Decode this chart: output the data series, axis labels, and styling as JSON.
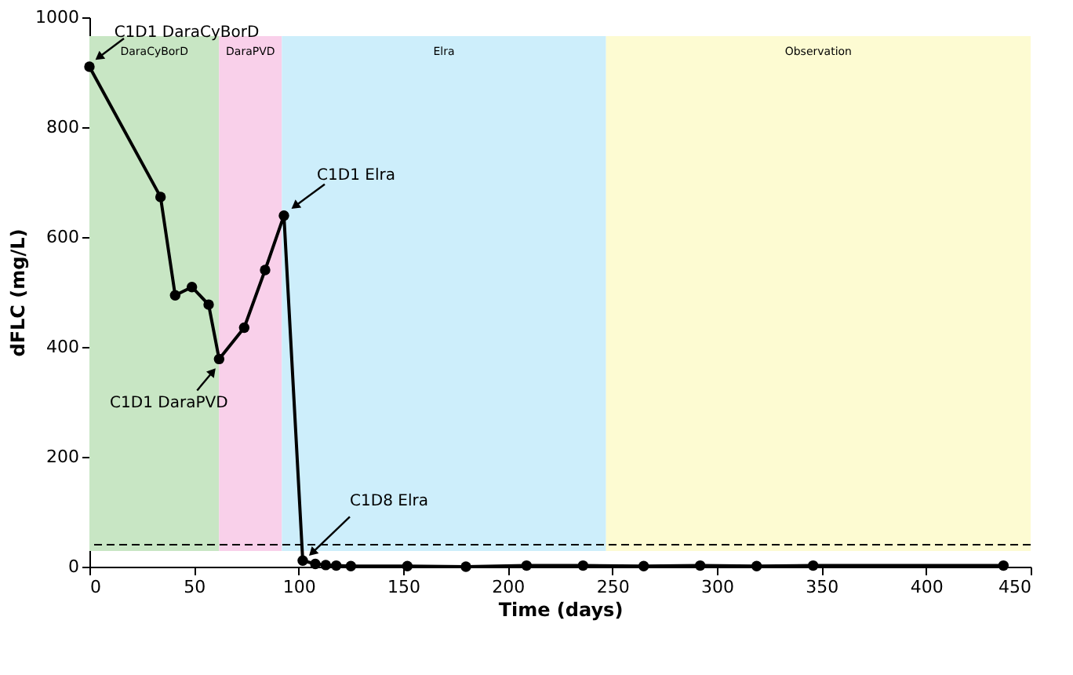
{
  "chart_data": {
    "type": "line",
    "xlabel": "Time (days)",
    "ylabel": "dFLC (mg/L)",
    "x": [
      0,
      34,
      41,
      49,
      57,
      62,
      74,
      84,
      93,
      102,
      108,
      113,
      118,
      125,
      152,
      180,
      209,
      236,
      265,
      292,
      319,
      346,
      437
    ],
    "series": [
      {
        "color": "#000000",
        "values": [
          910,
          673,
          494,
          509,
          477,
          378,
          435,
          540,
          639,
          11,
          5,
          3,
          2,
          1,
          1,
          0,
          2,
          2,
          1,
          2,
          1,
          2,
          2
        ]
      }
    ],
    "xlim": [
      0,
      450
    ],
    "xticks": [
      0,
      50,
      100,
      150,
      200,
      250,
      300,
      350,
      400,
      450
    ],
    "ylim": [
      0,
      1000
    ],
    "yticks": [
      0,
      200,
      400,
      600,
      800,
      1000
    ],
    "bands": [
      {
        "axis": "x",
        "from": 0,
        "to": 62,
        "label": "DaraCyBorD",
        "color": "#c8e6c4"
      },
      {
        "axis": "x",
        "from": 62,
        "to": 92,
        "label": "DaraPVD",
        "color": "#f9d0ea"
      },
      {
        "axis": "x",
        "from": 92,
        "to": 247,
        "label": "Elra",
        "color": "#cdeefb"
      },
      {
        "axis": "x",
        "from": 247,
        "to": 450,
        "label": "Observation",
        "color": "#fdfbd2"
      }
    ],
    "ref_lines": [
      {
        "axis": "y",
        "value": 40,
        "color": "#000000",
        "line_style": "dashed"
      }
    ],
    "annotations": [
      {
        "text": "C1D1 DaraCyBorD",
        "x": 0,
        "y": 910
      },
      {
        "text": "C1D1 DaraPVD",
        "x": 62,
        "y": 378
      },
      {
        "text": "C1D1 Elra",
        "x": 93,
        "y": 639
      },
      {
        "text": "C1D8 Elra",
        "x": 102,
        "y": 11
      }
    ],
    "marker": "circle",
    "line_style": "solid",
    "grid": false
  }
}
